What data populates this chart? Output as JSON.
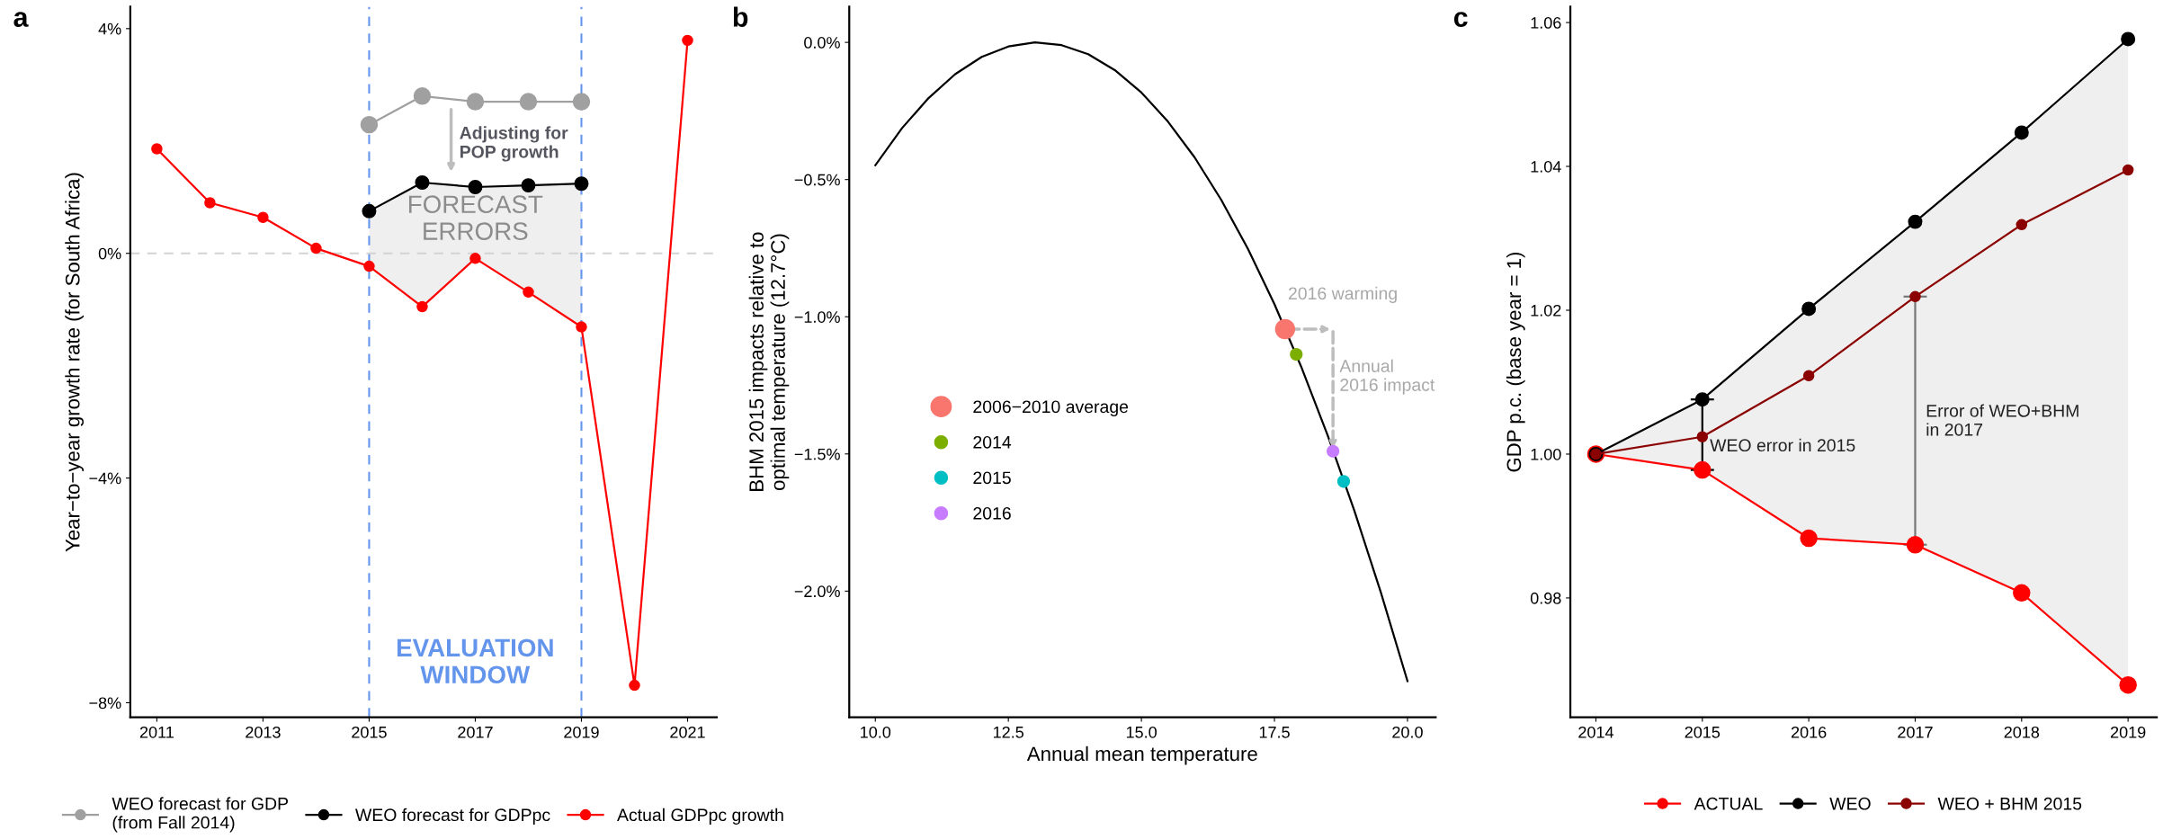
{
  "chart_data": [
    {
      "type": "line",
      "title": "a",
      "ylabel": "Year−to−year growth rate (for South Africa)",
      "xlim": [
        2010.5,
        2021.55
      ],
      "xticks": [
        2011,
        2013,
        2015,
        2017,
        2019,
        2021
      ],
      "ylim": [
        -8.26,
        4.39
      ],
      "yticks": [
        {
          "value": 4,
          "label": "4%"
        },
        {
          "value": 0,
          "label": "0%"
        },
        {
          "value": -4,
          "label": "−4%"
        },
        {
          "value": -8,
          "label": "−8%"
        }
      ],
      "marker": "circle",
      "legend": "bottom",
      "grid": false,
      "series": [
        {
          "name": "WEO forecast for GDP\n(from Fall 2014)",
          "color": "#a0a0a0",
          "x": [
            2015,
            2016,
            2017,
            2018,
            2019
          ],
          "values": [
            2.29,
            2.8,
            2.7,
            2.7,
            2.7
          ]
        },
        {
          "name": "WEO forecast for GDPpc",
          "color": "#000000",
          "x": [
            2015,
            2016,
            2017,
            2018,
            2019
          ],
          "values": [
            0.75,
            1.26,
            1.18,
            1.21,
            1.24
          ],
          "lower": [
            -0.23,
            -0.95,
            -0.09,
            -0.69,
            -1.31
          ],
          "upper": [
            0.75,
            1.26,
            1.18,
            1.21,
            1.24
          ]
        },
        {
          "name": "Actual GDPpc growth",
          "color": "#ff0000",
          "x": [
            2011,
            2012,
            2013,
            2014,
            2015,
            2016,
            2017,
            2018,
            2019,
            2020,
            2021
          ],
          "values": [
            1.86,
            0.9,
            0.64,
            0.09,
            -0.23,
            -0.95,
            -0.09,
            -0.69,
            -1.31,
            -7.69,
            3.79
          ]
        }
      ],
      "ref_lines": [
        {
          "axis": "x",
          "value": 2015,
          "color": "#6495ed",
          "line_style": "dashed"
        },
        {
          "axis": "x",
          "value": 2019,
          "color": "#6495ed",
          "line_style": "dashed"
        },
        {
          "axis": "y",
          "value": 0,
          "color": "#d3d3d3",
          "line_style": "dashed"
        }
      ],
      "annotations": [
        "Adjusting for\nPOP growth",
        "FORECAST\nERRORS",
        "EVALUATION\nWINDOW"
      ]
    },
    {
      "type": "line",
      "title": "b",
      "xlabel": "Annual mean temperature",
      "ylabel": "BHM 2015 impacts relative to\noptimal temperature (12.7°C)",
      "xlim": [
        9.51,
        20.53
      ],
      "xticks": [
        {
          "value": 10,
          "label": "10.0"
        },
        {
          "value": 12.5,
          "label": "12.5"
        },
        {
          "value": 15,
          "label": "15.0"
        },
        {
          "value": 17.5,
          "label": "17.5"
        },
        {
          "value": 20,
          "label": "20.0"
        }
      ],
      "ylim": [
        -2.46,
        0.13
      ],
      "yticks": [
        {
          "value": 0,
          "label": "0.0%"
        },
        {
          "value": -0.5,
          "label": "−0.5%"
        },
        {
          "value": -1,
          "label": "−1.0%"
        },
        {
          "value": -1.5,
          "label": "−1.5%"
        },
        {
          "value": -2,
          "label": "−2.0%"
        }
      ],
      "legend": "center left",
      "grid": false,
      "series": [
        {
          "color": "#000000",
          "x": [
            10,
            10.5,
            11,
            11.5,
            12,
            12.5,
            13,
            13.5,
            14,
            14.5,
            15,
            15.5,
            16,
            16.5,
            17,
            17.5,
            18,
            18.5,
            19,
            19.5,
            20
          ],
          "values": [
            -0.448,
            -0.313,
            -0.203,
            -0.116,
            -0.053,
            -0.015,
            0.0,
            -0.01,
            -0.043,
            -0.101,
            -0.183,
            -0.289,
            -0.419,
            -0.574,
            -0.752,
            -0.954,
            -1.181,
            -1.432,
            -1.706,
            -2.005,
            -2.328
          ]
        },
        {
          "type": "scatter",
          "name": "2006−2010 average",
          "color": "#f8766d",
          "x": [
            17.7
          ],
          "values": [
            -1.045
          ],
          "sizes": [
            1
          ]
        },
        {
          "type": "scatter",
          "name": "2014",
          "color": "#7cae00",
          "x": [
            17.91
          ],
          "values": [
            -1.137
          ],
          "sizes": [
            0.4
          ]
        },
        {
          "type": "scatter",
          "name": "2015",
          "color": "#00bfc4",
          "x": [
            18.8
          ],
          "values": [
            -1.6
          ],
          "sizes": [
            0.4
          ]
        },
        {
          "type": "scatter",
          "name": "2016",
          "color": "#c77cff",
          "x": [
            18.6
          ],
          "values": [
            -1.49
          ],
          "sizes": [
            0.4
          ]
        }
      ],
      "annotations": [
        "2016 warming",
        "Annual\n2016 impact"
      ]
    },
    {
      "type": "line",
      "title": "c",
      "ylabel": "GDP p.c. (base year = 1)",
      "xlim": [
        2013.76,
        2019.27
      ],
      "xticks": [
        2014,
        2015,
        2016,
        2017,
        2018,
        2019
      ],
      "ylim": [
        0.9634,
        1.0622
      ],
      "yticks": [
        {
          "value": 0.98,
          "label": "0.98"
        },
        {
          "value": 1.0,
          "label": "1.00"
        },
        {
          "value": 1.02,
          "label": "1.02"
        },
        {
          "value": 1.04,
          "label": "1.04"
        },
        {
          "value": 1.06,
          "label": "1.06"
        }
      ],
      "marker": "circle",
      "legend": "bottom",
      "grid": false,
      "series": [
        {
          "name": "ACTUAL",
          "color": "#ff0000",
          "x": [
            2014,
            2015,
            2016,
            2017,
            2018,
            2019
          ],
          "values": [
            1.0,
            0.9978,
            0.9883,
            0.9874,
            0.9807,
            0.9679
          ]
        },
        {
          "name": "WEO",
          "color": "#000000",
          "x": [
            2014,
            2015,
            2016,
            2017,
            2018,
            2019
          ],
          "values": [
            1.0,
            1.0076,
            1.0202,
            1.0323,
            1.0447,
            1.0577
          ],
          "lower": [
            1.0,
            0.9978,
            0.9883,
            0.9874,
            0.9807,
            0.9679
          ],
          "upper": [
            1.0,
            1.0076,
            1.0202,
            1.0323,
            1.0447,
            1.0577
          ]
        },
        {
          "name": "WEO + BHM 2015",
          "color": "#8b0000",
          "x": [
            2014,
            2015,
            2016,
            2017,
            2018,
            2019
          ],
          "values": [
            1.0,
            1.0024,
            1.0109,
            1.0219,
            1.0319,
            1.0395
          ]
        }
      ],
      "annotations": [
        {
          "text": "WEO error in 2015",
          "x": 2015,
          "y": 1.0024
        },
        "Error of WEO+BHM\nin 2017"
      ]
    }
  ]
}
